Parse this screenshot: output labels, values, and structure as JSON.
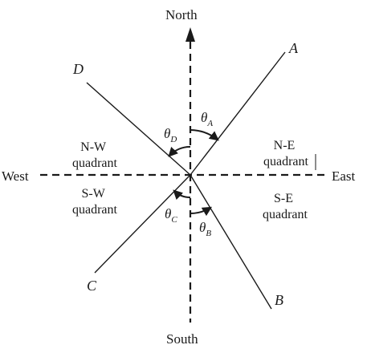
{
  "directions": {
    "north": "North",
    "south": "South",
    "east": "East",
    "west": "West"
  },
  "quadrants": {
    "ne": [
      "N-E",
      "quadrant"
    ],
    "nw": [
      "N-W",
      "quadrant"
    ],
    "sw": [
      "S-W",
      "quadrant"
    ],
    "se": [
      "S-E",
      "quadrant"
    ]
  },
  "lines": {
    "a": "A",
    "b": "B",
    "c": "C",
    "d": "D"
  },
  "angles": {
    "theta": "θ",
    "a": "A",
    "b": "B",
    "c": "C",
    "d": "D"
  },
  "colors": {
    "ink": "#1a1a1a",
    "background": "#ffffff"
  }
}
